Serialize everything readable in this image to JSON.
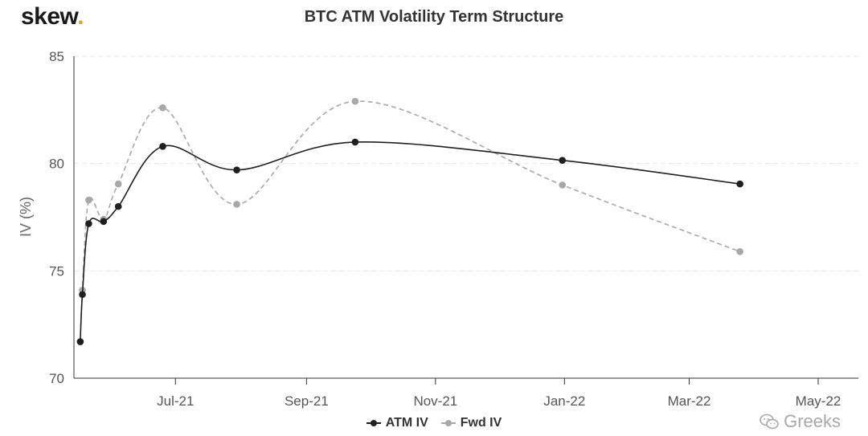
{
  "brand": {
    "name": "skew",
    "dot": "."
  },
  "watermark": {
    "text": "Greeks",
    "icon": "wechat-icon"
  },
  "colors": {
    "atm": "#1f1f1f",
    "fwd": "#a8a8a8",
    "grid": "#e6e6e6",
    "axis": "#333333"
  },
  "chart_data": {
    "type": "line",
    "title": "BTC ATM Volatility Term Structure",
    "xlabel": "",
    "ylabel": "IV (%)",
    "ylim": [
      70,
      85
    ],
    "yticks": [
      70,
      75,
      80,
      85
    ],
    "xlim": [
      "2021-05-14",
      "2022-05-20"
    ],
    "xticks": [
      {
        "date": "2021-07-01",
        "label": "Jul-21"
      },
      {
        "date": "2021-09-01",
        "label": "Sep-21"
      },
      {
        "date": "2021-11-01",
        "label": "Nov-21"
      },
      {
        "date": "2022-01-01",
        "label": "Jan-22"
      },
      {
        "date": "2022-03-01",
        "label": "Mar-22"
      },
      {
        "date": "2022-05-01",
        "label": "May-22"
      }
    ],
    "grid": "horizontal dashed",
    "legend": "bottom-center",
    "series": [
      {
        "name": "ATM IV",
        "style": "solid",
        "points": [
          {
            "x": "2021-05-17",
            "y": 71.7
          },
          {
            "x": "2021-05-18",
            "y": 73.9
          },
          {
            "x": "2021-05-21",
            "y": 77.2
          },
          {
            "x": "2021-05-28",
            "y": 77.3
          },
          {
            "x": "2021-06-04",
            "y": 78.0
          },
          {
            "x": "2021-06-25",
            "y": 80.8
          },
          {
            "x": "2021-07-30",
            "y": 79.7
          },
          {
            "x": "2021-09-24",
            "y": 81.0
          },
          {
            "x": "2021-12-31",
            "y": 80.15
          },
          {
            "x": "2022-03-25",
            "y": 79.05
          }
        ]
      },
      {
        "name": "Fwd IV",
        "style": "dashed",
        "points": [
          {
            "x": "2021-05-17",
            "y": 71.7
          },
          {
            "x": "2021-05-18",
            "y": 74.1
          },
          {
            "x": "2021-05-21",
            "y": 78.3
          },
          {
            "x": "2021-05-28",
            "y": 77.4
          },
          {
            "x": "2021-06-04",
            "y": 79.05
          },
          {
            "x": "2021-06-25",
            "y": 82.6
          },
          {
            "x": "2021-07-30",
            "y": 78.1
          },
          {
            "x": "2021-09-24",
            "y": 82.9
          },
          {
            "x": "2021-12-31",
            "y": 79.0
          },
          {
            "x": "2022-03-25",
            "y": 75.9
          }
        ]
      }
    ]
  }
}
